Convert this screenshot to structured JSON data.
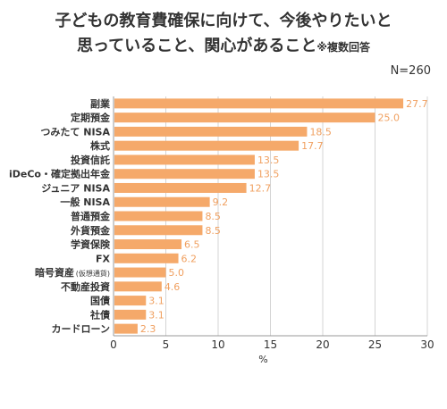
{
  "chart_data": {
    "type": "bar",
    "orientation": "horizontal",
    "title_line1": "子どもの教育費確保に向けて、今後やりたいと",
    "title_line2": "思っていること、関心があること",
    "title_note": "※複数回答",
    "n_label": "N=260",
    "xlabel": "%",
    "xlim": [
      0,
      30
    ],
    "xticks": [
      "0",
      "5",
      "10",
      "15",
      "20",
      "25",
      "30"
    ],
    "grid": true,
    "bar_color": "#f5a96a",
    "value_color": "#f0a060",
    "categories": [
      "副業",
      "定期預金",
      "つみたて NISA",
      "株式",
      "投資信託",
      "iDeCo・確定拠出年金",
      "ジュニア NISA",
      "一般 NISA",
      "普通預金",
      "外貨預金",
      "学資保険",
      "FX",
      "暗号資産",
      "不動産投資",
      "国債",
      "社債",
      "カードローン"
    ],
    "category_notes": {
      "12": "(仮想通貨)"
    },
    "values": [
      27.7,
      25.0,
      18.5,
      17.7,
      13.5,
      13.5,
      12.7,
      9.2,
      8.5,
      8.5,
      6.5,
      6.2,
      5.0,
      4.6,
      3.1,
      3.1,
      2.3
    ],
    "value_labels": [
      "27.7",
      "25.0",
      "18.5",
      "17.7",
      "13.5",
      "13.5",
      "12.7",
      "9.2",
      "8.5",
      "8.5",
      "6.5",
      "6.2",
      "5.0",
      "4.6",
      "3.1",
      "3.1",
      "2.3"
    ]
  }
}
